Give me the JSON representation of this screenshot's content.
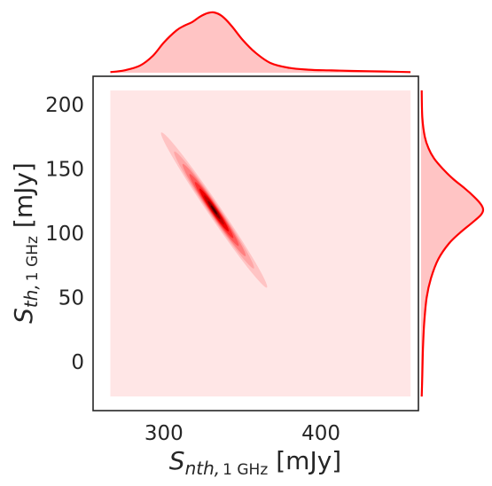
{
  "chart_data": {
    "type": "kde-joint",
    "xlabel": {
      "symbol": "S",
      "subscript_italic": "nth,",
      "subscript_upright": "1 GHz",
      "unit": "[mJy]"
    },
    "ylabel": {
      "symbol": "S",
      "subscript_italic": "th,",
      "subscript_upright": "1 GHz",
      "unit": "[mJy]"
    },
    "xlim": [
      255,
      462
    ],
    "ylim": [
      -38,
      222
    ],
    "x_ticks": [
      300,
      400
    ],
    "y_ticks": [
      0,
      50,
      100,
      150,
      200
    ],
    "x_tick_labels": [
      "300",
      "400"
    ],
    "y_tick_labels": [
      "0",
      "50",
      "100",
      "150",
      "200"
    ],
    "grid": false,
    "joint_kde": {
      "fill_region": {
        "x": [
          266,
          457
        ],
        "y": [
          -27,
          211
        ]
      },
      "center": [
        332,
        118
      ],
      "major_axis_direction": [
        -0.487,
        0.874
      ],
      "levels": [
        {
          "level": 1,
          "half_length": 69.0,
          "half_width": 4.2
        },
        {
          "level": 2,
          "half_length": 52.0,
          "half_width": 3.5
        },
        {
          "level": 3,
          "half_length": 41.0,
          "half_width": 3.0
        },
        {
          "level": 4,
          "half_length": 32.0,
          "half_width": 2.6
        },
        {
          "level": 5,
          "half_length": 25.0,
          "half_width": 2.2
        },
        {
          "level": 6,
          "half_length": 19.0,
          "half_width": 1.8
        },
        {
          "level": 7,
          "half_length": 13.0,
          "half_width": 1.4
        },
        {
          "level": 8,
          "half_length": 8.0,
          "half_width": 1.0
        },
        {
          "level": 9,
          "half_length": 4.0,
          "half_width": 0.6
        }
      ]
    },
    "marginal_x": {
      "x": [
        266,
        275,
        285,
        293,
        300,
        308,
        313,
        318,
        323,
        328,
        332,
        337,
        343,
        350,
        358,
        368,
        380,
        392,
        405,
        420,
        440,
        457
      ],
      "density": [
        0.01,
        0.04,
        0.12,
        0.28,
        0.5,
        0.7,
        0.78,
        0.84,
        0.93,
        0.99,
        1.0,
        0.94,
        0.78,
        0.55,
        0.34,
        0.16,
        0.08,
        0.05,
        0.04,
        0.03,
        0.02,
        0.01
      ]
    },
    "marginal_y": {
      "y": [
        -27,
        -10,
        10,
        30,
        50,
        65,
        80,
        92,
        100,
        108,
        114,
        118,
        122,
        128,
        135,
        142,
        150,
        158,
        166,
        175,
        190,
        211
      ],
      "density": [
        0.01,
        0.02,
        0.03,
        0.05,
        0.09,
        0.16,
        0.28,
        0.45,
        0.62,
        0.82,
        0.96,
        1.0,
        0.97,
        0.86,
        0.7,
        0.52,
        0.35,
        0.21,
        0.12,
        0.06,
        0.02,
        0.01
      ]
    },
    "colors": {
      "line": "#ff0000",
      "fill_light": "#ffc4c4",
      "background_fill": "#ffe6e6",
      "contour_palette": [
        "#ffc4c4",
        "#ffa6a6",
        "#ff8080",
        "#ff5a5a",
        "#ff2e2e",
        "#ee0000",
        "#c40000",
        "#8a0000",
        "#4a0000"
      ],
      "frame": "#262626"
    }
  }
}
